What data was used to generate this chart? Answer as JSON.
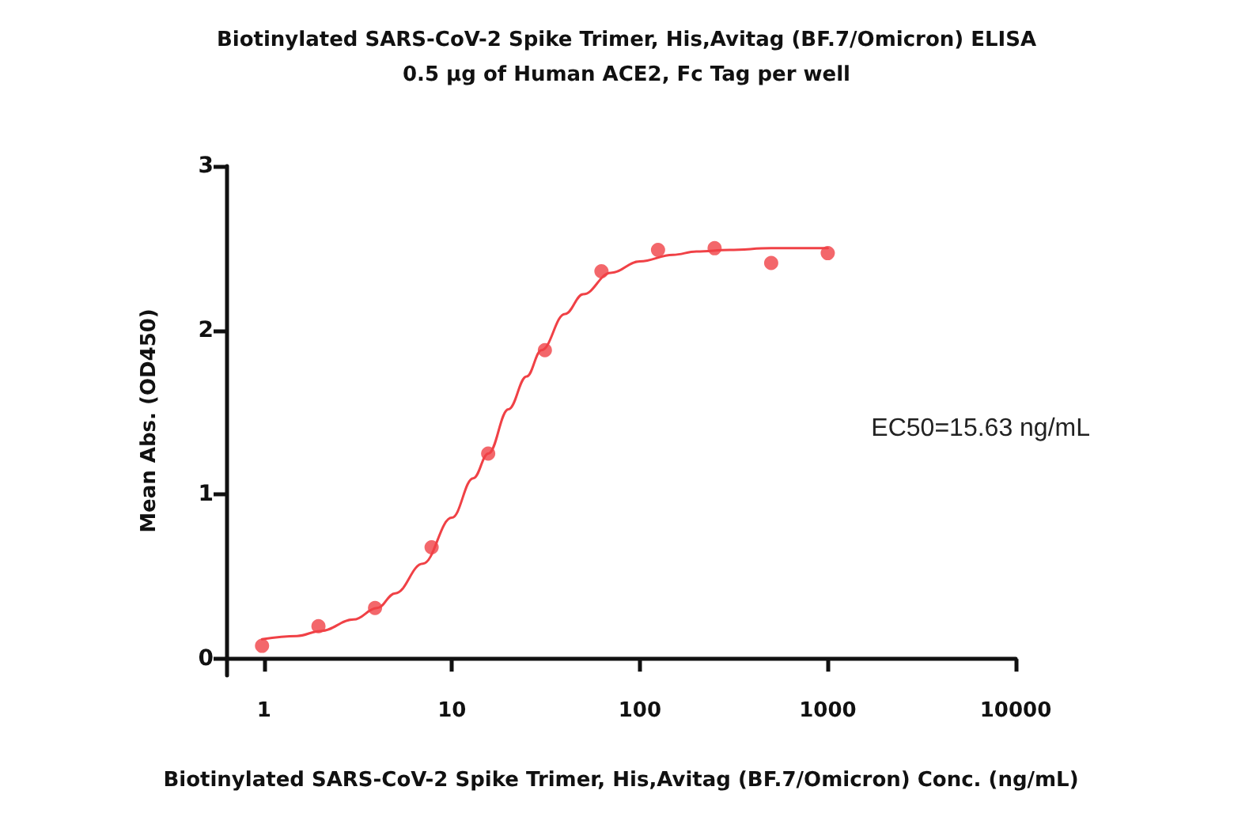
{
  "chart_data": {
    "type": "scatter",
    "title": "Biotinylated SARS-CoV-2 Spike Trimer, His,Avitag (BF.7/Omicron) ELISA",
    "subtitle": "0.5 μg of Human ACE2, Fc Tag per well",
    "xlabel": "Biotinylated SARS-CoV-2 Spike Trimer, His,Avitag (BF.7/Omicron) Conc. (ng/mL)",
    "ylabel": "Mean Abs. (OD450)",
    "annotations": [
      "EC50=15.63 ng/mL"
    ],
    "log": "x",
    "grid": false,
    "xlim": [
      0.63,
      10000
    ],
    "xticks": [
      1,
      10,
      100,
      1000,
      10000
    ],
    "ylim": [
      -0.1,
      3
    ],
    "yticks": [
      0,
      1,
      2,
      3
    ],
    "series": [
      {
        "marker": "circle",
        "color": "#f04146",
        "x": [
          0.977,
          1.95,
          3.9,
          7.8,
          15.6,
          31.25,
          62.5,
          125,
          250,
          500,
          1000
        ],
        "values": [
          0.08,
          0.2,
          0.31,
          0.68,
          1.25,
          1.88,
          2.36,
          2.49,
          2.5,
          2.41,
          2.47
        ]
      },
      {
        "type": "line",
        "marker": "none",
        "line_style": "solid",
        "color": "#f04146",
        "x": [
          0.977,
          1.5,
          2,
          3,
          4,
          5,
          7,
          10,
          13,
          15.63,
          20,
          25,
          30,
          40,
          50,
          70,
          100,
          150,
          200,
          300,
          500,
          1000
        ],
        "values": [
          0.12,
          0.14,
          0.17,
          0.24,
          0.31,
          0.4,
          0.58,
          0.86,
          1.1,
          1.25,
          1.52,
          1.72,
          1.88,
          2.1,
          2.22,
          2.35,
          2.42,
          2.46,
          2.48,
          2.49,
          2.5,
          2.5
        ]
      }
    ]
  }
}
